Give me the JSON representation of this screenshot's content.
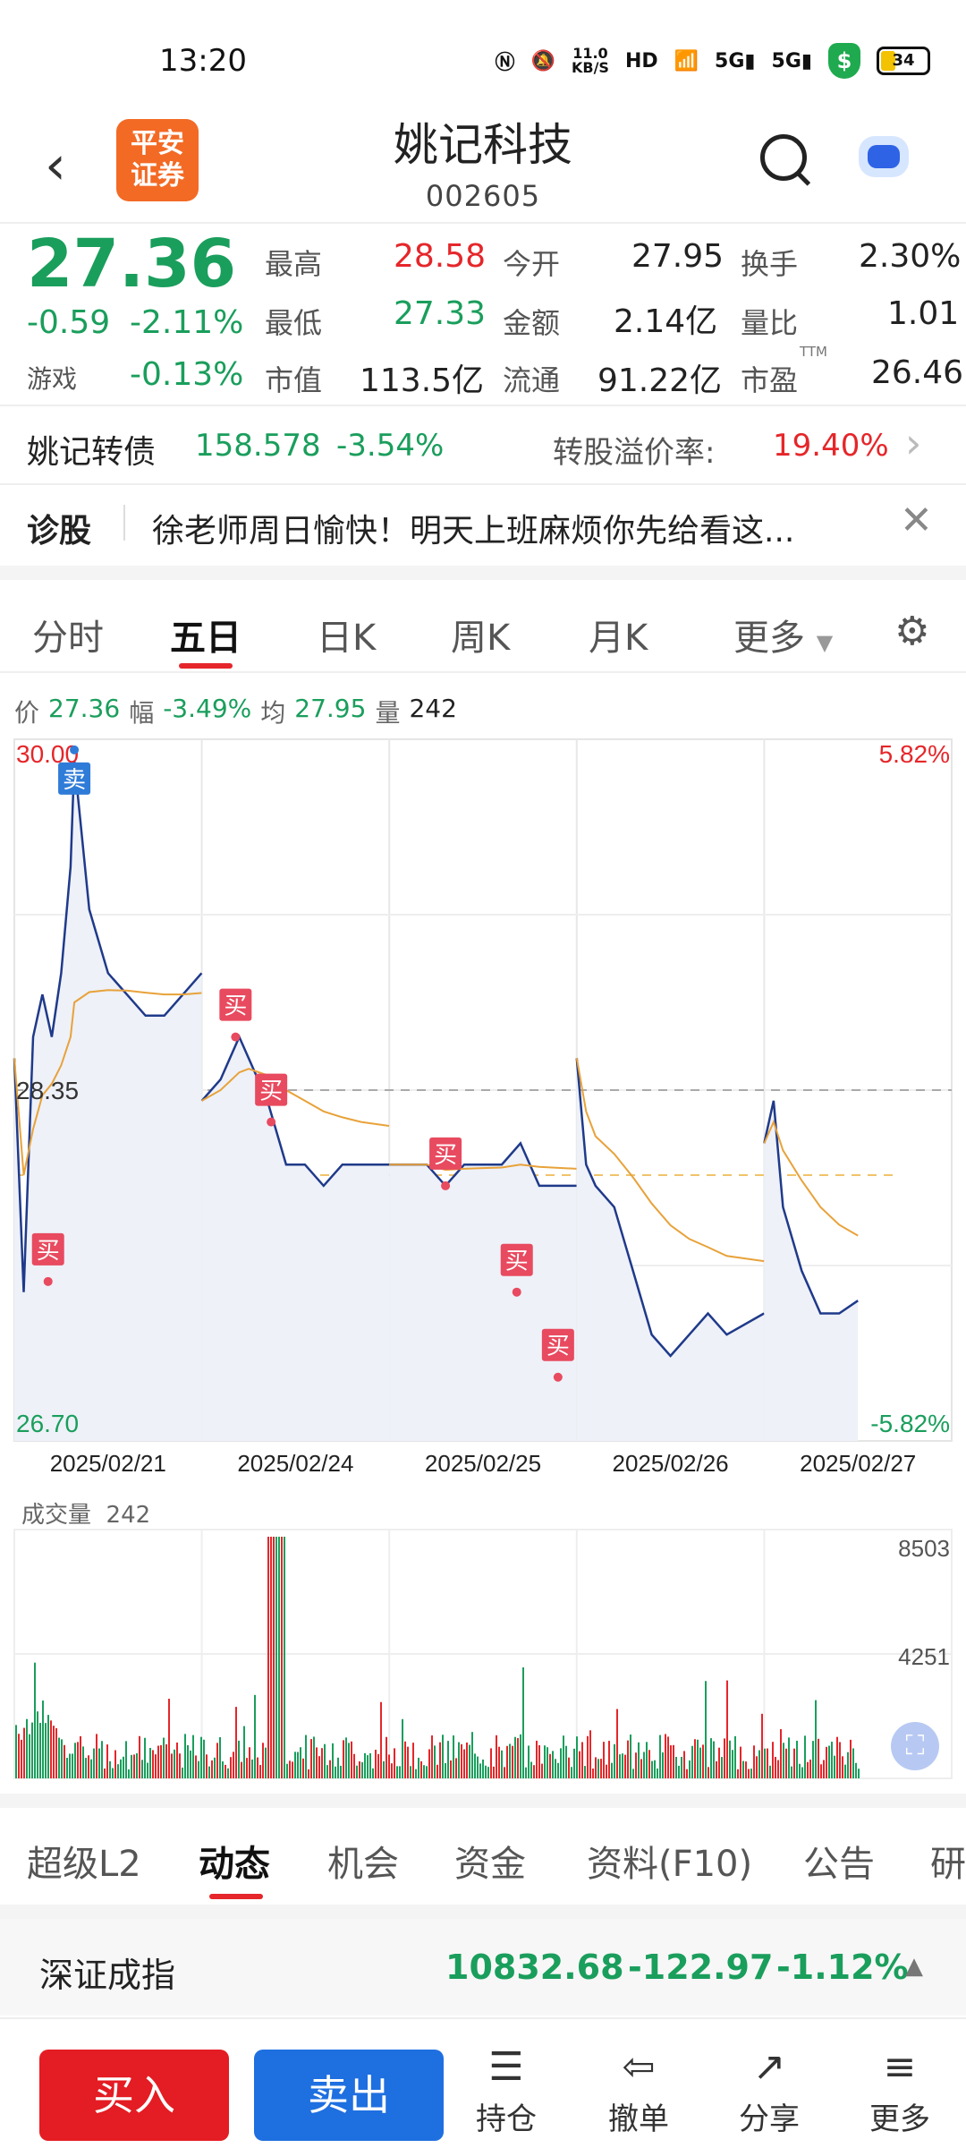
{
  "status_bar": {
    "time": "13:20",
    "net_speed": "11.0\nKB/S",
    "battery": "34"
  },
  "header": {
    "logo_text": "平安\n证券",
    "stock_name": "姚记科技",
    "stock_code": "002605"
  },
  "quote": {
    "price": "27.36",
    "change": "-0.59",
    "change_pct": "-2.11%",
    "sector_label": "游戏",
    "sector_change": "-0.13%",
    "fields": [
      {
        "label": "最高",
        "value": "28.58"
      },
      {
        "label": "今开",
        "value": "27.95"
      },
      {
        "label": "换手",
        "value": "2.30%"
      },
      {
        "label": "最低",
        "value": "27.33"
      },
      {
        "label": "金额",
        "value": "2.14亿"
      },
      {
        "label": "量比",
        "value": "1.01"
      },
      {
        "label": "市值",
        "value": "113.5亿"
      },
      {
        "label": "流通",
        "value": "91.22亿"
      },
      {
        "label": "市盈",
        "value": "26.46"
      }
    ],
    "pe_sup": "TTM"
  },
  "bond": {
    "name": "姚记转债",
    "price": "158.578",
    "change": "-3.54%",
    "premium_label": "转股溢价率:",
    "premium": "19.40%"
  },
  "diagnosis": {
    "label": "诊股",
    "text": "徐老师周日愉快！明天上班麻烦你先给看这..."
  },
  "chart_tabs": [
    "分时",
    "五日",
    "日K",
    "周K",
    "月K",
    "更多"
  ],
  "active_tab": "五日",
  "chart_header": {
    "price_label": "价",
    "price": "27.36",
    "amp_label": "幅",
    "amp": "-3.49%",
    "avg_label": "均",
    "avg": "27.95",
    "vol_label": "量",
    "vol": "242"
  },
  "chart_data": {
    "type": "line",
    "title": "",
    "ylim": [
      26.7,
      30.0
    ],
    "y_ticks": [
      "30.00",
      "26.70"
    ],
    "pct_ticks": [
      "5.82%",
      "-5.82%"
    ],
    "ref_price": "28.35",
    "dates": [
      "2025/02/21",
      "2025/02/24",
      "2025/02/25",
      "2025/02/26",
      "2025/02/27"
    ],
    "series": [
      {
        "name": "",
        "points": [
          [
            0,
            28.5
          ],
          [
            0.05,
            27.4
          ],
          [
            0.1,
            28.6
          ],
          [
            0.15,
            28.8
          ],
          [
            0.2,
            28.6
          ],
          [
            0.25,
            28.9
          ],
          [
            0.3,
            29.4
          ],
          [
            0.32,
            29.9
          ],
          [
            0.4,
            29.2
          ],
          [
            0.5,
            28.9
          ],
          [
            0.6,
            28.8
          ],
          [
            0.7,
            28.7
          ],
          [
            0.8,
            28.7
          ],
          [
            0.9,
            28.8
          ],
          [
            0.999,
            28.9
          ],
          [
            1.0,
            28.3
          ],
          [
            1.1,
            28.4
          ],
          [
            1.2,
            28.6
          ],
          [
            1.25,
            28.5
          ],
          [
            1.35,
            28.3
          ],
          [
            1.45,
            28.0
          ],
          [
            1.55,
            28.0
          ],
          [
            1.65,
            27.9
          ],
          [
            1.75,
            28.0
          ],
          [
            1.85,
            28.0
          ],
          [
            1.999,
            28.0
          ],
          [
            2.0,
            28.0
          ],
          [
            2.1,
            28.0
          ],
          [
            2.2,
            28.0
          ],
          [
            2.3,
            27.9
          ],
          [
            2.4,
            28.0
          ],
          [
            2.5,
            28.0
          ],
          [
            2.6,
            28.0
          ],
          [
            2.7,
            28.1
          ],
          [
            2.8,
            27.9
          ],
          [
            2.999,
            27.9
          ],
          [
            3.0,
            28.5
          ],
          [
            3.05,
            28.0
          ],
          [
            3.1,
            27.9
          ],
          [
            3.2,
            27.8
          ],
          [
            3.3,
            27.5
          ],
          [
            3.4,
            27.2
          ],
          [
            3.5,
            27.1
          ],
          [
            3.6,
            27.2
          ],
          [
            3.7,
            27.3
          ],
          [
            3.8,
            27.2
          ],
          [
            3.999,
            27.3
          ],
          [
            4.0,
            28.1
          ],
          [
            4.05,
            28.3
          ],
          [
            4.1,
            27.8
          ],
          [
            4.2,
            27.5
          ],
          [
            4.3,
            27.3
          ],
          [
            4.4,
            27.3
          ],
          [
            4.5,
            27.36
          ]
        ]
      }
    ],
    "trade_marks": [
      {
        "label": "买",
        "x": 0.18,
        "y": 27.45
      },
      {
        "label": "卖",
        "x": 0.32,
        "y": 29.95
      },
      {
        "label": "买",
        "x": 1.18,
        "y": 28.6
      },
      {
        "label": "买",
        "x": 1.37,
        "y": 28.2
      },
      {
        "label": "买",
        "x": 2.3,
        "y": 27.9
      },
      {
        "label": "买",
        "x": 2.68,
        "y": 27.4
      },
      {
        "label": "买",
        "x": 2.9,
        "y": 27.0
      }
    ],
    "volume_label": "成交量",
    "volume": "242",
    "volume_ticks": [
      "8503",
      "4251"
    ]
  },
  "info_tabs": [
    "超级L2",
    "动态",
    "机会",
    "资金",
    "资料(F10)",
    "公告",
    "研"
  ],
  "active_info_tab": "动态",
  "index": {
    "name": "深证成指",
    "value": "10832.68",
    "change": "-122.97",
    "change_pct": "-1.12%"
  },
  "bottom": {
    "buy": "买入",
    "sell": "卖出",
    "hold": "持仓",
    "cancel": "撤单",
    "share": "分享",
    "more": "更多"
  },
  "colors": {
    "up": "#e5262a",
    "down": "#1a9e5c",
    "sell_btn": "#1e6fe0",
    "price_line": "#1f3a8a",
    "avg_line": "#e8a23a"
  }
}
